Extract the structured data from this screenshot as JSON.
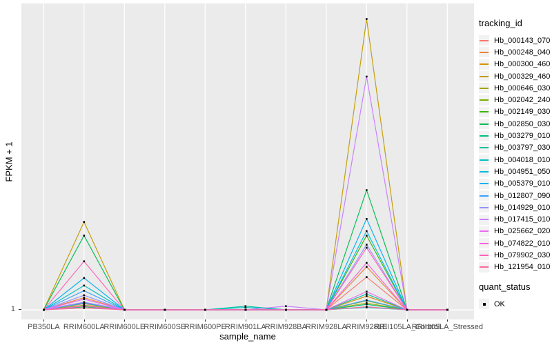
{
  "figure": {
    "background": "#FFFFFF",
    "panel_background": "#EBEBEB",
    "gridline_color": "#FFFFFF",
    "tick_label_color": "#4D4D4D",
    "axis_title_color": "#000000",
    "point_color": "#000000",
    "legend_key_background": "#F2F2F2"
  },
  "chart_data": {
    "type": "line",
    "title": "",
    "xlabel": "sample_name",
    "ylabel": "FPKM + 1",
    "y_tick_labels": [
      "1"
    ],
    "values_unit_note": "y values given as fraction of panel height above the y=1 baseline; only '1' is labeled on the axis",
    "grid": "vertical white gridlines at each category plus baseline gridline",
    "legend_position": "right",
    "legend_title": "tracking_id",
    "categories": [
      "PB350LA",
      "RRIM600LA",
      "RRIM600LE",
      "RRIM600SE",
      "RRIM600PE",
      "RRIM901LA",
      "RRIM928BA",
      "RRIM928LA",
      "RRIM928LE",
      "RRII105LA_Control",
      "RRII105LA_Stressed"
    ],
    "series": [
      {
        "name": "Hb_000143_070",
        "color": "#F8766D",
        "values": [
          0,
          0.02,
          0,
          0,
          0,
          0,
          0,
          0,
          0.108,
          0,
          0
        ]
      },
      {
        "name": "Hb_000248_040",
        "color": "#EA8331",
        "values": [
          0,
          0.04,
          0,
          0,
          0,
          0,
          0,
          0,
          0.142,
          0,
          0
        ]
      },
      {
        "name": "Hb_000300_460",
        "color": "#D89000",
        "values": [
          0,
          0.012,
          0,
          0,
          0,
          0,
          0,
          0,
          0.045,
          0,
          0
        ]
      },
      {
        "name": "Hb_000329_460",
        "color": "#C09B00",
        "values": [
          0,
          0.29,
          0,
          0,
          0,
          0,
          0,
          0,
          0.96,
          0,
          0
        ]
      },
      {
        "name": "Hb_000646_030",
        "color": "#A3A500",
        "values": [
          0,
          0.01,
          0,
          0,
          0,
          0,
          0,
          0,
          0.022,
          0,
          0
        ]
      },
      {
        "name": "Hb_002042_240",
        "color": "#7CAE00",
        "values": [
          0,
          0.015,
          0,
          0,
          0,
          0,
          0,
          0,
          0.03,
          0,
          0
        ]
      },
      {
        "name": "Hb_002149_030",
        "color": "#39B600",
        "values": [
          0,
          0.022,
          0,
          0,
          0,
          0,
          0,
          0,
          0.245,
          0,
          0
        ]
      },
      {
        "name": "Hb_002850_030",
        "color": "#00BB4E",
        "values": [
          0,
          0.245,
          0,
          0,
          0,
          0,
          0,
          0,
          0.395,
          0,
          0
        ]
      },
      {
        "name": "Hb_003279_010",
        "color": "#00C079",
        "values": [
          0,
          0.01,
          0,
          0,
          0,
          0,
          0,
          0,
          0.018,
          0,
          0
        ]
      },
      {
        "name": "Hb_003797_030",
        "color": "#00C19C",
        "values": [
          0,
          0.025,
          0,
          0,
          0,
          0.012,
          0,
          0,
          0.052,
          0,
          0
        ]
      },
      {
        "name": "Hb_004018_010",
        "color": "#00BFC4",
        "values": [
          0,
          0.08,
          0,
          0,
          0,
          0.008,
          0,
          0,
          0.008,
          0,
          0
        ]
      },
      {
        "name": "Hb_004951_050",
        "color": "#00BAE0",
        "values": [
          0,
          0.022,
          0,
          0,
          0,
          0,
          0,
          0,
          0.26,
          0,
          0
        ]
      },
      {
        "name": "Hb_005379_010",
        "color": "#00B0F6",
        "values": [
          0,
          0.105,
          0,
          0,
          0,
          0,
          0,
          0,
          0.3,
          0,
          0
        ]
      },
      {
        "name": "Hb_012807_090",
        "color": "#35A2FF",
        "values": [
          0,
          0.063,
          0,
          0,
          0,
          0,
          0,
          0,
          0.032,
          0,
          0
        ]
      },
      {
        "name": "Hb_014929_010",
        "color": "#9590FF",
        "values": [
          0,
          0.048,
          0,
          0,
          0,
          0,
          0,
          0,
          0.215,
          0,
          0
        ]
      },
      {
        "name": "Hb_017415_010",
        "color": "#C77CFF",
        "values": [
          0,
          0.025,
          0,
          0,
          0,
          0,
          0.012,
          0,
          0.77,
          0,
          0
        ]
      },
      {
        "name": "Hb_025662_020",
        "color": "#E76BF3",
        "values": [
          0,
          0.035,
          0,
          0,
          0,
          0,
          0,
          0,
          0.06,
          0,
          0
        ]
      },
      {
        "name": "Hb_074822_010",
        "color": "#FA62DB",
        "values": [
          0,
          0.012,
          0,
          0,
          0,
          0,
          0,
          0,
          0.155,
          0,
          0
        ]
      },
      {
        "name": "Hb_079902_030",
        "color": "#FF62BC",
        "values": [
          0,
          0.16,
          0,
          0,
          0,
          0,
          0,
          0,
          0.205,
          0,
          0
        ]
      },
      {
        "name": "Hb_121954_010",
        "color": "#FF6A98",
        "values": [
          0,
          0.006,
          0,
          0,
          0,
          0,
          0,
          0,
          0.01,
          0,
          0
        ]
      }
    ],
    "quant_legend": {
      "title": "quant_status",
      "items": [
        {
          "label": "OK",
          "marker": "black-square"
        }
      ]
    }
  }
}
